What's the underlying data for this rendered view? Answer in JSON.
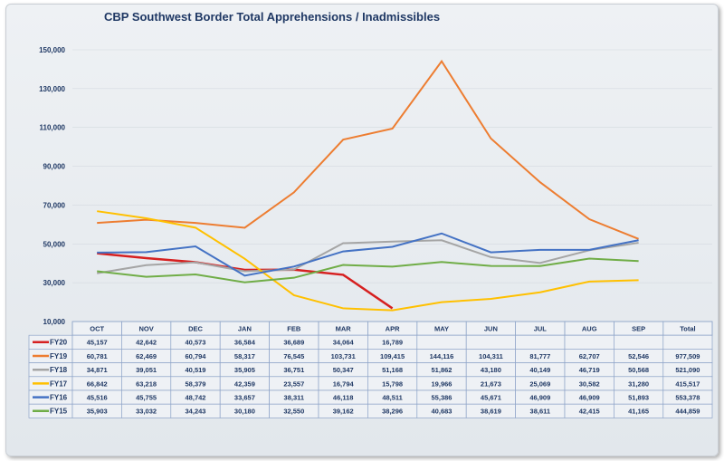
{
  "chart_data": {
    "type": "line",
    "title": "CBP Southwest Border Total Apprehensions / Inadmissibles",
    "xlabel": "",
    "ylabel": "",
    "ylim": [
      10000,
      150000
    ],
    "yticks": [
      "10,000",
      "30,000",
      "50,000",
      "70,000",
      "90,000",
      "110,000",
      "130,000",
      "150,000"
    ],
    "ytick_values": [
      10000,
      30000,
      50000,
      70000,
      90000,
      110000,
      130000,
      150000
    ],
    "categories": [
      "OCT",
      "NOV",
      "DEC",
      "JAN",
      "FEB",
      "MAR",
      "APR",
      "MAY",
      "JUN",
      "JUL",
      "AUG",
      "SEP"
    ],
    "total_label": "Total",
    "legend_placement": "table-left",
    "series": [
      {
        "name": "FY20",
        "color": "#d62020",
        "values": [
          45157,
          42642,
          40573,
          36584,
          36689,
          34064,
          16789,
          null,
          null,
          null,
          null,
          null
        ],
        "display": [
          "45,157",
          "42,642",
          "40,573",
          "36,584",
          "36,689",
          "34,064",
          "16,789",
          "",
          "",
          "",
          "",
          ""
        ],
        "total": ""
      },
      {
        "name": "FY19",
        "color": "#ed7d31",
        "values": [
          60781,
          62469,
          60794,
          58317,
          76545,
          103731,
          109415,
          144116,
          104311,
          81777,
          62707,
          52546
        ],
        "display": [
          "60,781",
          "62,469",
          "60,794",
          "58,317",
          "76,545",
          "103,731",
          "109,415",
          "144,116",
          "104,311",
          "81,777",
          "62,707",
          "52,546"
        ],
        "total": "977,509"
      },
      {
        "name": "FY18",
        "color": "#a5a5a5",
        "values": [
          34871,
          39051,
          40519,
          35905,
          36751,
          50347,
          51168,
          51862,
          43180,
          40149,
          46719,
          50568
        ],
        "display": [
          "34,871",
          "39,051",
          "40,519",
          "35,905",
          "36,751",
          "50,347",
          "51,168",
          "51,862",
          "43,180",
          "40,149",
          "46,719",
          "50,568"
        ],
        "total": "521,090"
      },
      {
        "name": "FY17",
        "color": "#ffc000",
        "values": [
          66842,
          63218,
          58379,
          42359,
          23557,
          16794,
          15798,
          19966,
          21673,
          25069,
          30582,
          31280
        ],
        "display": [
          "66,842",
          "63,218",
          "58,379",
          "42,359",
          "23,557",
          "16,794",
          "15,798",
          "19,966",
          "21,673",
          "25,069",
          "30,582",
          "31,280"
        ],
        "total": "415,517"
      },
      {
        "name": "FY16",
        "color": "#4472c4",
        "values": [
          45516,
          45755,
          48742,
          33657,
          38311,
          46118,
          48511,
          55386,
          45671,
          46909,
          46909,
          51893
        ],
        "display": [
          "45,516",
          "45,755",
          "48,742",
          "33,657",
          "38,311",
          "46,118",
          "48,511",
          "55,386",
          "45,671",
          "46,909",
          "46,909",
          "51,893"
        ],
        "total": "553,378"
      },
      {
        "name": "FY15",
        "color": "#70ad47",
        "values": [
          35903,
          33032,
          34243,
          30180,
          32550,
          39162,
          38296,
          40683,
          38619,
          38611,
          42415,
          41165
        ],
        "display": [
          "35,903",
          "33,032",
          "34,243",
          "30,180",
          "32,550",
          "39,162",
          "38,296",
          "40,683",
          "38,619",
          "38,611",
          "42,415",
          "41,165"
        ],
        "total": "444,859"
      }
    ]
  }
}
